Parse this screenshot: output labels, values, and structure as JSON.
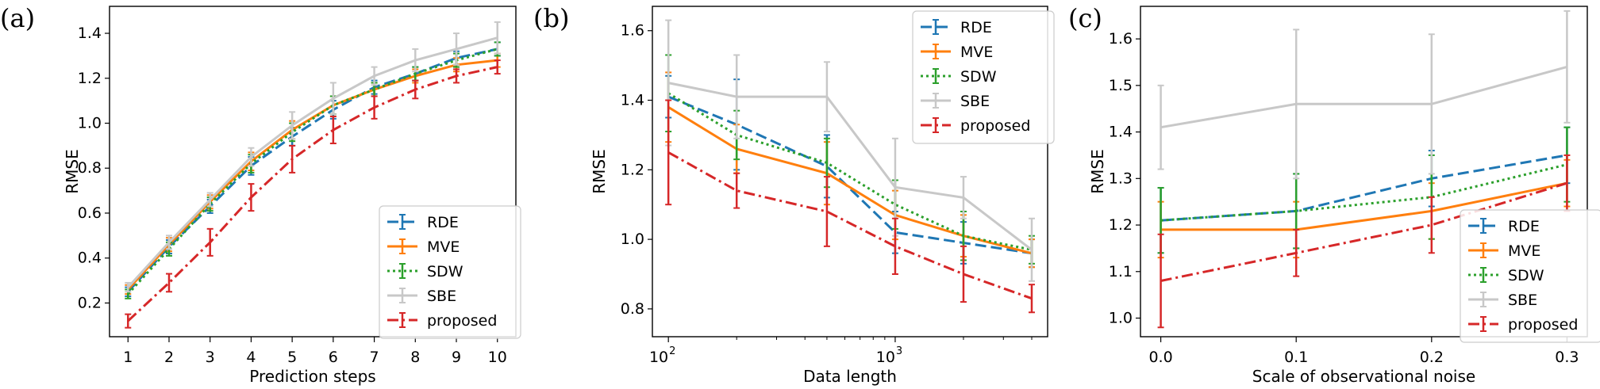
{
  "colors": {
    "RDE": "#1f77b4",
    "MVE": "#ff7f0e",
    "SDW": "#2ca02c",
    "SBE": "#c8c8c8",
    "proposed": "#d62728"
  },
  "chart_data": [
    {
      "type": "line",
      "panel": "(a)",
      "title": "",
      "xlabel": "Prediction steps",
      "ylabel": "RMSE",
      "xscale": "linear",
      "x": [
        1,
        2,
        3,
        4,
        5,
        6,
        7,
        8,
        9,
        10
      ],
      "xticks": [
        1,
        2,
        3,
        4,
        5,
        6,
        7,
        8,
        9,
        10
      ],
      "xticklabels": [
        "1",
        "2",
        "3",
        "4",
        "5",
        "6",
        "7",
        "8",
        "9",
        "10"
      ],
      "xlim": [
        0.55,
        10.45
      ],
      "ylim": [
        0.05,
        1.52
      ],
      "yticks": [
        0.2,
        0.4,
        0.6,
        0.8,
        1.0,
        1.2,
        1.4
      ],
      "yticklabels": [
        "0.2",
        "0.4",
        "0.6",
        "0.8",
        "1.0",
        "1.2",
        "1.4"
      ],
      "legend_position": "lower-right",
      "series": [
        {
          "name": "RDE",
          "style": "dashed",
          "values": [
            0.25,
            0.45,
            0.63,
            0.81,
            0.94,
            1.06,
            1.16,
            1.22,
            1.29,
            1.33
          ],
          "errors": [
            0.02,
            0.03,
            0.03,
            0.04,
            0.04,
            0.04,
            0.03,
            0.03,
            0.03,
            0.03
          ]
        },
        {
          "name": "MVE",
          "style": "solid",
          "values": [
            0.26,
            0.46,
            0.65,
            0.83,
            0.97,
            1.08,
            1.15,
            1.21,
            1.26,
            1.28
          ],
          "errors": [
            0.02,
            0.03,
            0.03,
            0.04,
            0.04,
            0.04,
            0.03,
            0.03,
            0.03,
            0.03
          ]
        },
        {
          "name": "SDW",
          "style": "dotted",
          "values": [
            0.24,
            0.44,
            0.64,
            0.82,
            0.96,
            1.08,
            1.15,
            1.22,
            1.28,
            1.33
          ],
          "errors": [
            0.02,
            0.03,
            0.03,
            0.04,
            0.04,
            0.04,
            0.03,
            0.03,
            0.03,
            0.03
          ]
        },
        {
          "name": "SBE",
          "style": "solid",
          "values": [
            0.27,
            0.47,
            0.66,
            0.85,
            0.99,
            1.11,
            1.21,
            1.28,
            1.33,
            1.38
          ],
          "errors": [
            0.02,
            0.03,
            0.03,
            0.04,
            0.06,
            0.07,
            0.04,
            0.05,
            0.07,
            0.07
          ]
        },
        {
          "name": "proposed",
          "style": "dashdot",
          "values": [
            0.12,
            0.29,
            0.47,
            0.67,
            0.84,
            0.97,
            1.07,
            1.15,
            1.21,
            1.25
          ],
          "errors": [
            0.03,
            0.04,
            0.06,
            0.06,
            0.06,
            0.06,
            0.05,
            0.04,
            0.03,
            0.03
          ]
        }
      ]
    },
    {
      "type": "line",
      "panel": "(b)",
      "title": "",
      "xlabel": "Data length",
      "ylabel": "RMSE",
      "xscale": "log",
      "x": [
        100,
        200,
        500,
        1000,
        2000,
        4000
      ],
      "xticks": [
        100,
        1000
      ],
      "xticklabels": [
        "10",
        "10"
      ],
      "xtickexponents": [
        "2",
        "3"
      ],
      "xlim": [
        85,
        4700
      ],
      "ylim": [
        0.72,
        1.67
      ],
      "yticks": [
        0.8,
        1.0,
        1.2,
        1.4,
        1.6
      ],
      "yticklabels": [
        "0.8",
        "1.0",
        "1.2",
        "1.4",
        "1.6"
      ],
      "legend_position": "upper-right",
      "series": [
        {
          "name": "RDE",
          "style": "dashed",
          "values": [
            1.41,
            1.33,
            1.21,
            1.02,
            0.99,
            0.96
          ],
          "errors": [
            0.06,
            0.13,
            0.09,
            0.06,
            0.06,
            0.04
          ]
        },
        {
          "name": "MVE",
          "style": "solid",
          "values": [
            1.38,
            1.26,
            1.19,
            1.07,
            1.01,
            0.96
          ],
          "errors": [
            0.1,
            0.07,
            0.09,
            0.07,
            0.06,
            0.04
          ]
        },
        {
          "name": "SDW",
          "style": "dotted",
          "values": [
            1.42,
            1.3,
            1.22,
            1.1,
            1.01,
            0.97
          ],
          "errors": [
            0.11,
            0.07,
            0.07,
            0.07,
            0.07,
            0.04
          ]
        },
        {
          "name": "SBE",
          "style": "solid",
          "values": [
            1.45,
            1.41,
            1.41,
            1.15,
            1.12,
            0.97
          ],
          "errors": [
            0.18,
            0.12,
            0.1,
            0.14,
            0.06,
            0.09
          ]
        },
        {
          "name": "proposed",
          "style": "dashdot",
          "values": [
            1.25,
            1.14,
            1.08,
            0.98,
            0.9,
            0.83
          ],
          "errors": [
            0.15,
            0.05,
            0.1,
            0.08,
            0.08,
            0.04
          ]
        }
      ]
    },
    {
      "type": "line",
      "panel": "(c)",
      "title": "",
      "xlabel": "Scale of observational noise",
      "ylabel": "RMSE",
      "xscale": "linear",
      "x": [
        0.0,
        0.1,
        0.2,
        0.3
      ],
      "xticks": [
        0.0,
        0.1,
        0.2,
        0.3
      ],
      "xticklabels": [
        "0.0",
        "0.1",
        "0.2",
        "0.3"
      ],
      "xlim": [
        -0.015,
        0.315
      ],
      "ylim": [
        0.96,
        1.67
      ],
      "yticks": [
        1.0,
        1.1,
        1.2,
        1.3,
        1.4,
        1.5,
        1.6
      ],
      "yticklabels": [
        "1.0",
        "1.1",
        "1.2",
        "1.3",
        "1.4",
        "1.5",
        "1.6"
      ],
      "legend_position": "lower-right",
      "series": [
        {
          "name": "RDE",
          "style": "dashed",
          "values": [
            1.21,
            1.23,
            1.3,
            1.35
          ],
          "errors": [
            0.07,
            0.08,
            0.06,
            0.06
          ]
        },
        {
          "name": "MVE",
          "style": "solid",
          "values": [
            1.19,
            1.19,
            1.23,
            1.29
          ],
          "errors": [
            0.06,
            0.06,
            0.06,
            0.05
          ]
        },
        {
          "name": "SDW",
          "style": "dotted",
          "values": [
            1.21,
            1.23,
            1.26,
            1.33
          ],
          "errors": [
            0.07,
            0.08,
            0.09,
            0.08
          ]
        },
        {
          "name": "SBE",
          "style": "solid",
          "values": [
            1.41,
            1.46,
            1.46,
            1.54
          ],
          "errors": [
            0.09,
            0.16,
            0.15,
            0.12
          ]
        },
        {
          "name": "proposed",
          "style": "dashdot",
          "values": [
            1.08,
            1.14,
            1.2,
            1.29
          ],
          "errors": [
            0.1,
            0.05,
            0.06,
            0.06
          ]
        }
      ]
    }
  ]
}
